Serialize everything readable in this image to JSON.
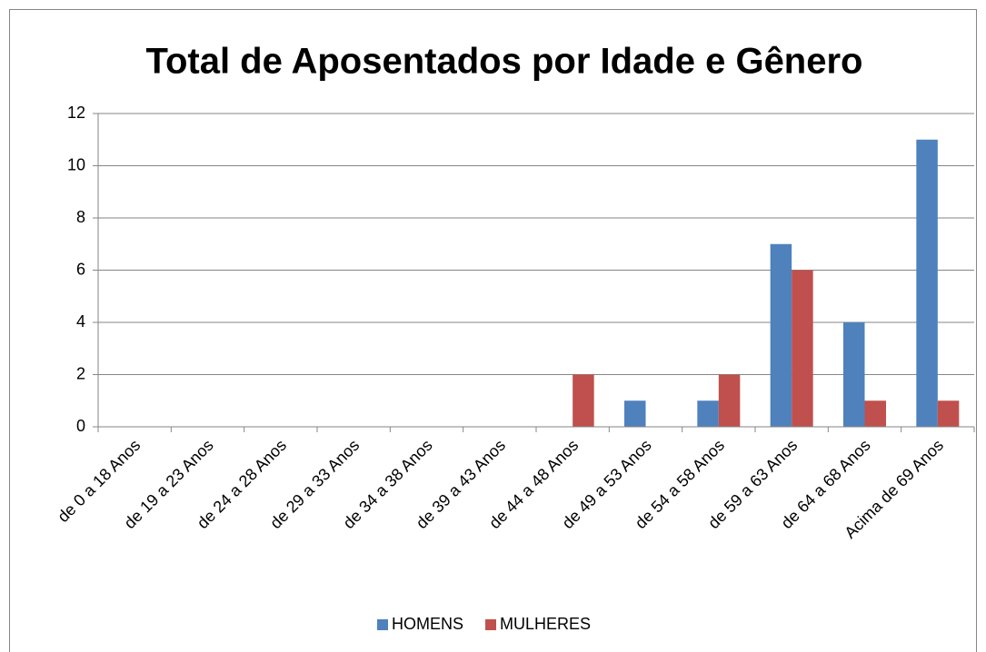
{
  "chart_data": {
    "type": "bar",
    "title": "Total de Aposentados por Idade e Gênero",
    "categories": [
      "de 0 a 18 Anos",
      "de 19 a 23 Anos",
      "de 24 a 28 Anos",
      "de 29 a 33 Anos",
      "de 34 a 38 Anos",
      "de 39 a 43 Anos",
      "de 44 a 48 Anos",
      "de 49 a 53 Anos",
      "de 54 a 58 Anos",
      "de 59 a 63 Anos",
      "de 64 a 68 Anos",
      "Acima de 69 Anos"
    ],
    "series": [
      {
        "name": "HOMENS",
        "color": "#4f81bd",
        "values": [
          0,
          0,
          0,
          0,
          0,
          0,
          0,
          1,
          1,
          7,
          4,
          11
        ]
      },
      {
        "name": "MULHERES",
        "color": "#c0504d",
        "values": [
          0,
          0,
          0,
          0,
          0,
          0,
          2,
          0,
          2,
          6,
          1,
          1
        ]
      }
    ],
    "ylim": [
      0,
      12
    ],
    "yticks": [
      0,
      2,
      4,
      6,
      8,
      10,
      12
    ],
    "grid": true,
    "legend": "bottom"
  }
}
